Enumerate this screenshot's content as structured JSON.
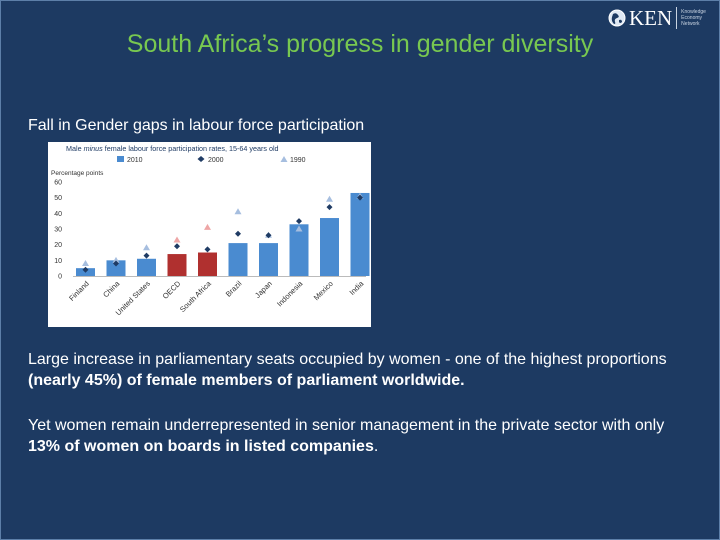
{
  "slide": {
    "title": "South Africa’s progress in gender diversity",
    "subtitle": "Fall in Gender gaps in labour force participation",
    "logo": {
      "text": "KEN",
      "tagline": [
        "Knowledge",
        "Economy",
        "Network"
      ],
      "icon": "globe-icon"
    },
    "paragraph1": {
      "a": "Large increase in parliamentary seats occupied by women  - one of the highest proportions ",
      "b": "(nearly 45%) of female members of parliament worldwide."
    },
    "paragraph2": {
      "a": "Yet women remain underrepresented in senior management in the private sector with only ",
      "b": "13% of women on boards in listed companies",
      "c": "."
    }
  },
  "colors": {
    "background": "#1d3a62",
    "title": "#78c850",
    "bar_2010": "#4a8bd0",
    "bar_highlight": "#b0302f",
    "marker_2000": "#1f3b64",
    "marker_1990": "#a6bedf",
    "marker_1990_highlight": "#eea6a6"
  },
  "chart_data": {
    "type": "bar",
    "title_parts": [
      "Male ",
      "minus",
      " female labour force participation rates, 15-64 years old"
    ],
    "ylabel": "Percentage points",
    "ylim": [
      0,
      60
    ],
    "yticks": [
      0,
      10,
      20,
      30,
      40,
      50,
      60
    ],
    "grid": false,
    "legend_position": "top",
    "categories": [
      "Finland",
      "China",
      "United States",
      "OECD",
      "South Africa",
      "Brazil",
      "Japan",
      "Indonesia",
      "Mexico",
      "India"
    ],
    "highlighted_categories": [
      "OECD",
      "South Africa"
    ],
    "series": [
      {
        "name": "2010",
        "mark": "bar",
        "values": [
          5,
          10,
          11,
          14,
          15,
          21,
          21,
          33,
          37,
          53
        ]
      },
      {
        "name": "2000",
        "mark": "diamond",
        "values": [
          4,
          8,
          13,
          19,
          17,
          27,
          26,
          35,
          44,
          50
        ]
      },
      {
        "name": "1990",
        "mark": "triangle",
        "values": [
          8,
          10,
          18,
          23,
          31,
          41,
          26,
          30,
          49,
          51
        ]
      }
    ]
  }
}
